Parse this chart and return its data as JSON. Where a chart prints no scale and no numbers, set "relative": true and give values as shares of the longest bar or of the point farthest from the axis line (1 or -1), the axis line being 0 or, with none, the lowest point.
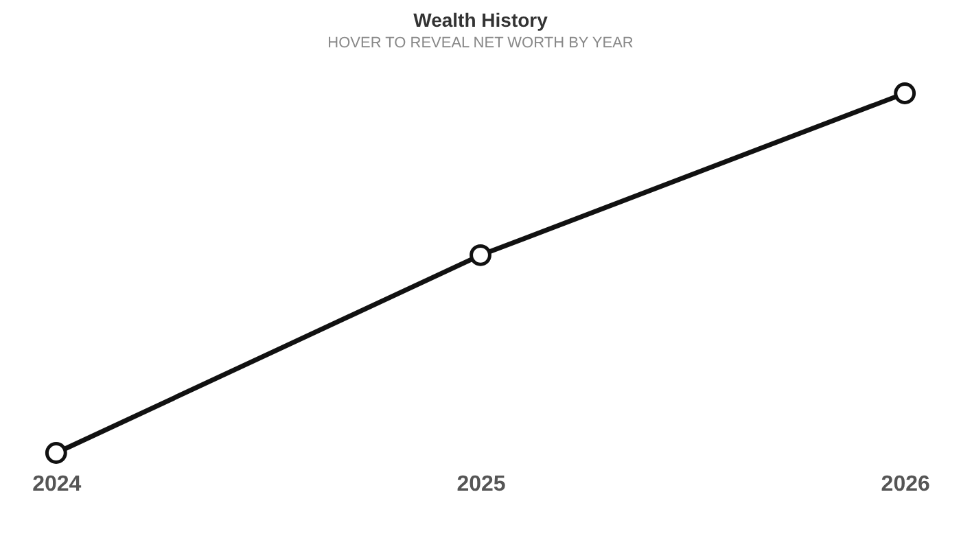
{
  "chart_data": {
    "type": "line",
    "title": "Wealth History",
    "subtitle": "HOVER TO REVEAL NET WORTH BY YEAR",
    "categories": [
      "2024",
      "2025",
      "2026"
    ],
    "relative": true,
    "series": [
      {
        "color": "#111111",
        "values": [
          0,
          0.55,
          1
        ]
      }
    ],
    "marker": "circle",
    "line_style": "solid",
    "grid": false
  }
}
